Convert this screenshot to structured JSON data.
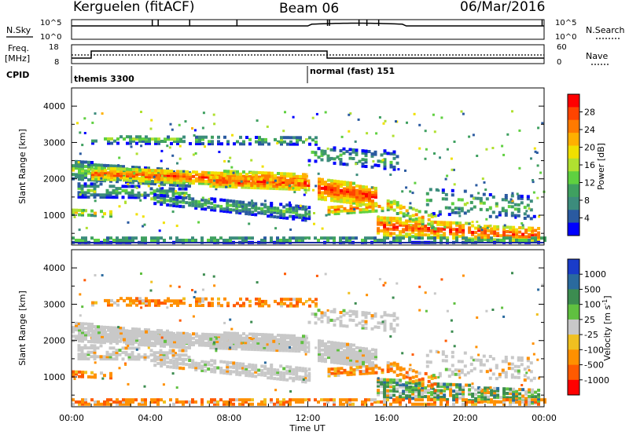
{
  "header": {
    "station": "Kerguelen (fitACF)",
    "beam": "Beam 06",
    "date": "06/Mar/2016"
  },
  "nsky_panel": {
    "left_label": "N.Sky",
    "left_ticks": [
      "10^5",
      "10^0"
    ],
    "right_label": "N.Search",
    "right_ticks": [
      "10^5",
      "10^0"
    ]
  },
  "freq_panel": {
    "left_label_line1": "Freq.",
    "left_label_line2": "[MHz]",
    "left_ticks": [
      "18",
      "8"
    ],
    "right_label": "Nave",
    "right_ticks": [
      "60",
      "0"
    ]
  },
  "cpid_panel": {
    "label": "CPID",
    "modes": [
      "themis 3300",
      "normal (fast) 151"
    ]
  },
  "chart_data": [
    {
      "type": "heatmap",
      "name": "power",
      "ylabel": "Slant Range [km]",
      "yticks": [
        "4000",
        "3000",
        "2000",
        "1000"
      ],
      "ylim": [
        180,
        4500
      ],
      "colorbar_label": "Power [dB]",
      "colorbar_ticks": [
        "28",
        "24",
        "20",
        "16",
        "12",
        "8",
        "4"
      ],
      "colorbar_colors": [
        "#ff0000",
        "#ff4400",
        "#ff7a00",
        "#ffb000",
        "#f0e000",
        "#b0e030",
        "#5fd040",
        "#3fa060",
        "#3c8c7c",
        "#2a5aa0",
        "#0000ff"
      ],
      "description_blobs": [
        {
          "range_km": [
            1500,
            2500
          ],
          "t_hours": [
            0,
            6
          ],
          "db": 16
        },
        {
          "range_km": [
            1500,
            2300
          ],
          "t_hours": [
            6,
            12
          ],
          "db": 26
        },
        {
          "range_km": [
            800,
            1500
          ],
          "t_hours": [
            9,
            12
          ],
          "db": 14
        },
        {
          "range_km": [
            1000,
            2200
          ],
          "t_hours": [
            13,
            15.5
          ],
          "db": 26
        },
        {
          "range_km": [
            250,
            900
          ],
          "t_hours": [
            17,
            23.5
          ],
          "db": 28
        }
      ]
    },
    {
      "type": "heatmap",
      "name": "velocity",
      "ylabel": "Slant Range [km]",
      "yticks": [
        "4000",
        "3000",
        "2000",
        "1000"
      ],
      "ylim": [
        180,
        4500
      ],
      "colorbar_label": "Velocity [m s^-1]",
      "colorbar_ticks": [
        "1000",
        "500",
        "100",
        "25",
        "-25",
        "-100",
        "-500",
        "-1000"
      ],
      "colorbar_colors": [
        "#1a3cc8",
        "#2a6a9e",
        "#3c8c50",
        "#60c040",
        "#c8c8c8",
        "#f0c020",
        "#ff9000",
        "#ff5a00",
        "#ff0000"
      ],
      "xlabel": "Time UT",
      "xticks": [
        "00:00",
        "04:00",
        "08:00",
        "12:00",
        "16:00",
        "20:00",
        "00:00"
      ],
      "xlim": [
        0,
        24
      ]
    }
  ]
}
